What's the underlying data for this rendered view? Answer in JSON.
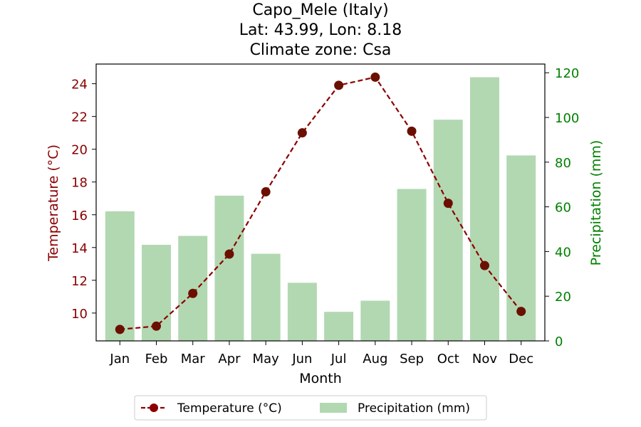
{
  "chart_data": {
    "type": "bar+line",
    "title_lines": [
      "Capo_Mele (Italy)",
      "Lat: 43.99, Lon: 8.18",
      "Climate zone: Csa"
    ],
    "categories": [
      "Jan",
      "Feb",
      "Mar",
      "Apr",
      "May",
      "Jun",
      "Jul",
      "Aug",
      "Sep",
      "Oct",
      "Nov",
      "Dec"
    ],
    "xlabel": "Month",
    "temperature": {
      "name": "Temperature (°C)",
      "axis_label": "Temperature (°C)",
      "values": [
        9.0,
        9.2,
        11.2,
        13.6,
        17.4,
        21.0,
        23.9,
        24.4,
        21.1,
        16.7,
        12.9,
        10.1
      ],
      "ylim": [
        8.3,
        25.2
      ],
      "ticks": [
        10,
        12,
        14,
        16,
        18,
        20,
        22,
        24
      ],
      "color": "#8b0000"
    },
    "precipitation": {
      "name": "Precipitation (mm)",
      "axis_label": "Precipitation (mm)",
      "values": [
        58,
        43,
        47,
        65,
        39,
        26,
        13,
        18,
        68,
        99,
        118,
        83
      ],
      "ylim": [
        0,
        123.9
      ],
      "ticks": [
        0,
        20,
        40,
        60,
        80,
        100,
        120
      ],
      "color": "#008000",
      "bar_color": "#b2d8b2"
    },
    "legend_position": "bottom-center",
    "grid": false
  }
}
